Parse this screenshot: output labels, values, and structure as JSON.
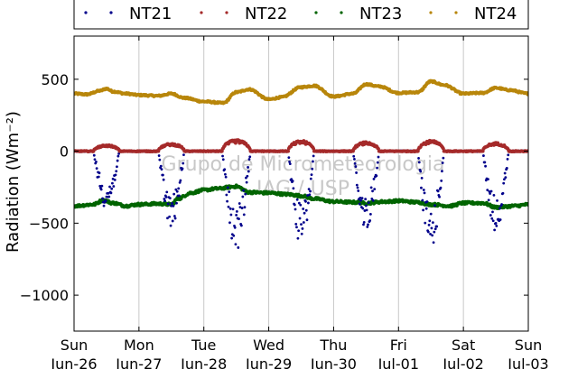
{
  "chart_data": {
    "type": "scatter",
    "title": "",
    "xlabel": "",
    "ylabel": "Radiation (Wm⁻²)",
    "ylim": [
      -1250,
      800
    ],
    "yticks": [
      500,
      0,
      -500,
      -1000
    ],
    "ytick_labels": [
      "500",
      "0",
      "−500",
      "−1000"
    ],
    "xlim": [
      0,
      7
    ],
    "xticks": [
      {
        "day": "Sun",
        "date": "Jun-26"
      },
      {
        "day": "Mon",
        "date": "Jun-27"
      },
      {
        "day": "Tue",
        "date": "Jun-28"
      },
      {
        "day": "Wed",
        "date": "Jun-29"
      },
      {
        "day": "Thu",
        "date": "Jun-30"
      },
      {
        "day": "Fri",
        "date": "Jul-01"
      },
      {
        "day": "Sat",
        "date": "Jul-02"
      },
      {
        "day": "Sun",
        "date": "Jul-03"
      }
    ],
    "grid": "vertical",
    "legend_position": "top",
    "watermark": [
      "Grupo de Micrometeorologia",
      "IAG / USP"
    ],
    "series": [
      {
        "name": "NT21",
        "color": "#00008b",
        "night_level": 0,
        "days": [
          {
            "start": 0.3,
            "end": 0.7,
            "min": -400
          },
          {
            "start": 1.3,
            "end": 1.7,
            "min": -550
          },
          {
            "start": 2.28,
            "end": 2.72,
            "min": -700
          },
          {
            "start": 3.3,
            "end": 3.7,
            "min": -660
          },
          {
            "start": 4.3,
            "end": 4.7,
            "min": -560
          },
          {
            "start": 5.3,
            "end": 5.7,
            "min": -700
          },
          {
            "start": 6.3,
            "end": 6.7,
            "min": -560
          }
        ]
      },
      {
        "name": "NT22",
        "color": "#a52a2a",
        "night_level": 0,
        "days": [
          {
            "start": 0.3,
            "end": 0.7,
            "max": 45
          },
          {
            "start": 1.3,
            "end": 1.7,
            "max": 55
          },
          {
            "start": 2.28,
            "end": 2.72,
            "max": 80
          },
          {
            "start": 3.3,
            "end": 3.7,
            "max": 75
          },
          {
            "start": 4.3,
            "end": 4.7,
            "max": 65
          },
          {
            "start": 5.3,
            "end": 5.7,
            "max": 75
          },
          {
            "start": 6.3,
            "end": 6.7,
            "max": 60
          }
        ]
      },
      {
        "name": "NT23",
        "color": "#006400",
        "x": [
          0,
          0.3,
          0.45,
          0.6,
          0.8,
          1.0,
          1.3,
          1.5,
          1.6,
          1.8,
          2.0,
          2.2,
          2.5,
          2.7,
          3.0,
          3.3,
          3.5,
          3.7,
          4.0,
          4.3,
          4.5,
          4.8,
          5.0,
          5.3,
          5.5,
          5.8,
          6.0,
          6.3,
          6.5,
          6.8,
          7.0
        ],
        "values": [
          -380,
          -370,
          -340,
          -360,
          -380,
          -370,
          -365,
          -370,
          -330,
          -290,
          -270,
          -260,
          -245,
          -285,
          -290,
          -300,
          -310,
          -330,
          -350,
          -355,
          -360,
          -350,
          -345,
          -355,
          -370,
          -380,
          -360,
          -360,
          -390,
          -380,
          -370
        ]
      },
      {
        "name": "NT24",
        "color": "#b8860b",
        "x": [
          0,
          0.2,
          0.4,
          0.5,
          0.6,
          0.8,
          1.0,
          1.3,
          1.5,
          1.7,
          2.0,
          2.3,
          2.5,
          2.7,
          3.0,
          3.2,
          3.5,
          3.7,
          4.0,
          4.3,
          4.5,
          4.7,
          5.0,
          5.3,
          5.5,
          5.7,
          6.0,
          6.3,
          6.5,
          6.7,
          7.0
        ],
        "values": [
          400,
          395,
          420,
          435,
          415,
          400,
          390,
          385,
          400,
          370,
          345,
          335,
          410,
          430,
          360,
          375,
          445,
          455,
          380,
          400,
          465,
          450,
          405,
          410,
          485,
          460,
          400,
          405,
          440,
          425,
          400
        ]
      }
    ]
  }
}
